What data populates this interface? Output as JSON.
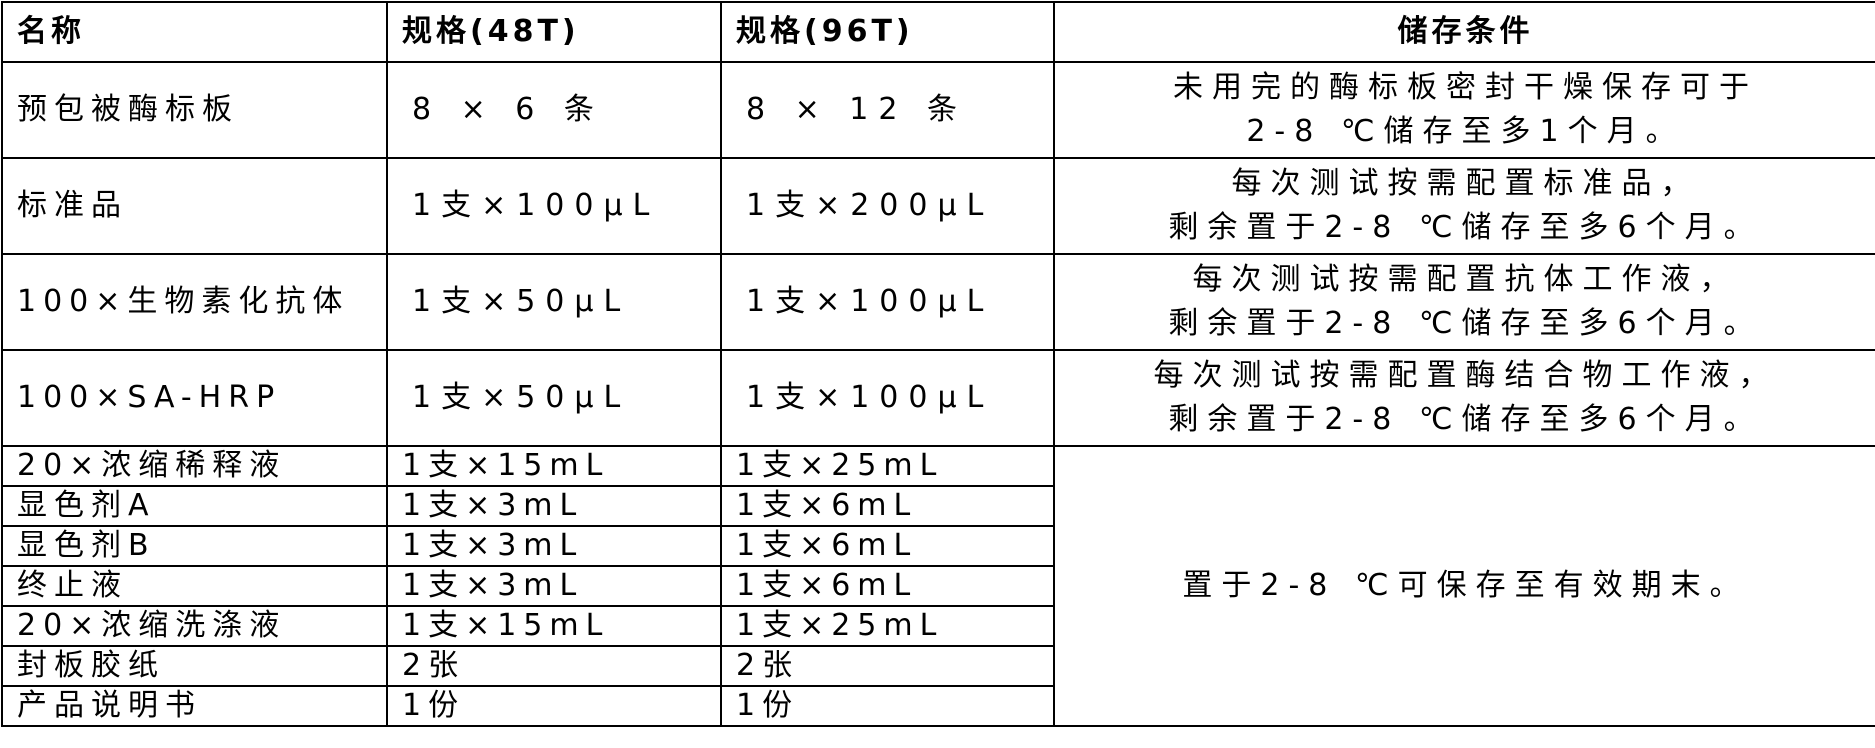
{
  "headers": [
    "名称",
    "规格(48T)",
    "规格(96T)",
    "储存条件"
  ],
  "rows": [
    {
      "name": "预包被酶标板",
      "s48": "8 × 6 条",
      "s96": "8 × 12 条",
      "storage": [
        "未用完的酶标板密封干燥保存可于",
        "2-8 ℃储存至多1个月。"
      ]
    },
    {
      "name": "标准品",
      "s48": "1支×100μL",
      "s96": "1支×200μL",
      "storage": [
        "每次测试按需配置标准品，",
        "剩余置于2-8 ℃储存至多6个月。"
      ]
    },
    {
      "name": "100×生物素化抗体",
      "s48": "1支×50μL",
      "s96": "1支×100μL",
      "storage": [
        "每次测试按需配置抗体工作液，",
        "剩余置于2-8 ℃储存至多6个月。"
      ]
    },
    {
      "name": "100×SA-HRP",
      "s48": "1支×50μL",
      "s96": "1支×100μL",
      "storage": [
        "每次测试按需配置酶结合物工作液，",
        "剩余置于2-8 ℃储存至多6个月。"
      ]
    }
  ],
  "small_rows": [
    {
      "name": "20×浓缩稀释液",
      "s48": "1支×15mL",
      "s96": "1支×25mL"
    },
    {
      "name": "显色剂A",
      "s48": "1支×3mL",
      "s96": "1支×6mL"
    },
    {
      "name": "显色剂B",
      "s48": "1支×3mL",
      "s96": "1支×6mL"
    },
    {
      "name": "终止液",
      "s48": "1支×3mL",
      "s96": "1支×6mL"
    },
    {
      "name": "20×浓缩洗涤液",
      "s48": "1支×15mL",
      "s96": "1支×25mL"
    },
    {
      "name": "封板胶纸",
      "s48": "2张",
      "s96": "2张"
    },
    {
      "name": "产品说明书",
      "s48": "1份",
      "s96": "1份"
    }
  ],
  "shared_storage": "置于2-8 ℃可保存至有效期末。"
}
